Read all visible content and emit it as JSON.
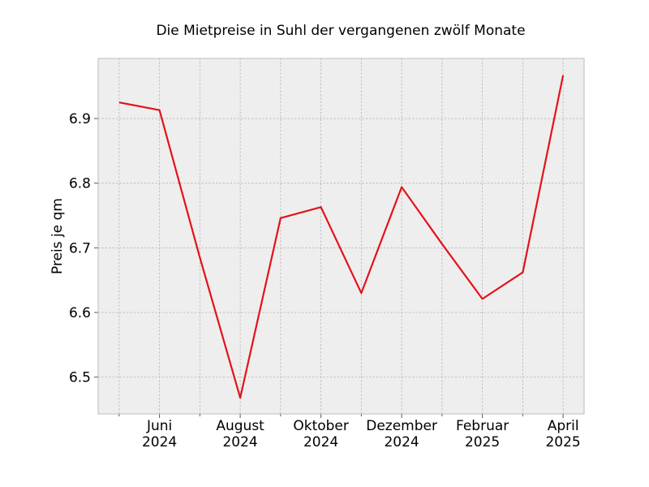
{
  "chart_data": {
    "type": "line",
    "title": "Die Mietpreise in Suhl der vergangenen zwölf Monate",
    "xlabel": "",
    "ylabel": "Preis je qm",
    "x": [
      "2024-05",
      "2024-06",
      "2024-07",
      "2024-08",
      "2024-09",
      "2024-10",
      "2024-11",
      "2024-12",
      "2025-01",
      "2025-02",
      "2025-03",
      "2025-04"
    ],
    "series": [
      {
        "values": [
          6.925,
          6.913,
          6.685,
          6.468,
          6.746,
          6.763,
          6.63,
          6.794,
          6.706,
          6.621,
          6.662,
          6.967
        ],
        "color": "#e3121b"
      }
    ],
    "ylim": [
      6.443,
      6.993
    ],
    "y_ticks": [
      6.5,
      6.6,
      6.7,
      6.8,
      6.9
    ],
    "x_major_ticks": [
      {
        "x": "2024-06",
        "line1": "Juni",
        "line2": "2024"
      },
      {
        "x": "2024-08",
        "line1": "August",
        "line2": "2024"
      },
      {
        "x": "2024-10",
        "line1": "Oktober",
        "line2": "2024"
      },
      {
        "x": "2024-12",
        "line1": "Dezember",
        "line2": "2024"
      },
      {
        "x": "2025-02",
        "line1": "Februar",
        "line2": "2025"
      },
      {
        "x": "2025-04",
        "line1": "April",
        "line2": "2025"
      }
    ],
    "x_minor_ticks": [
      "2024-05",
      "2024-07",
      "2024-09",
      "2024-11",
      "2025-01",
      "2025-03"
    ],
    "grid": true,
    "background": "#eeeeee",
    "frame_color": "#bcbcbc"
  }
}
